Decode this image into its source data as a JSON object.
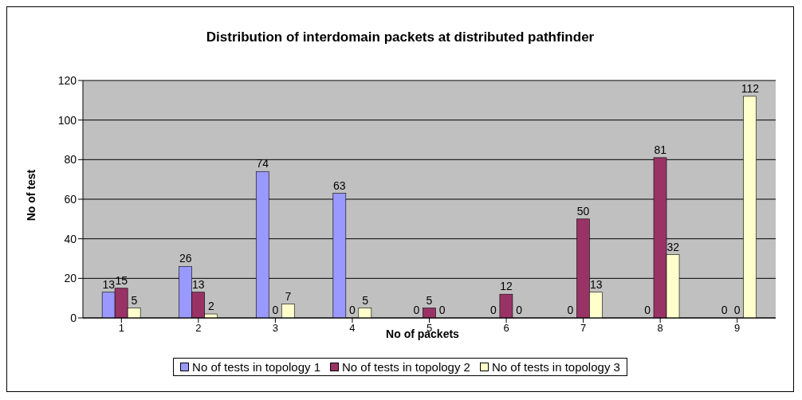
{
  "chart_data": {
    "type": "bar",
    "title": "Distribution of interdomain packets at distributed pathfinder",
    "xlabel": "No of packets",
    "ylabel": "No of test",
    "categories": [
      "1",
      "2",
      "3",
      "4",
      "5",
      "6",
      "7",
      "8",
      "9"
    ],
    "series": [
      {
        "name": "No of tests in topology 1",
        "color": "#9999ff",
        "values": [
          13,
          26,
          74,
          63,
          0,
          0,
          0,
          0,
          0
        ]
      },
      {
        "name": "No of tests in topology 2",
        "color": "#993366",
        "values": [
          15,
          13,
          0,
          0,
          5,
          12,
          50,
          81,
          0
        ]
      },
      {
        "name": "No of tests in topology 3",
        "color": "#ffffcc",
        "values": [
          5,
          2,
          7,
          5,
          0,
          0,
          13,
          32,
          112
        ]
      }
    ],
    "ylim": [
      0,
      120
    ],
    "yticks": [
      0,
      20,
      40,
      60,
      80,
      100,
      120
    ],
    "grid": "y",
    "legend": "bottom",
    "data_labels": true
  }
}
